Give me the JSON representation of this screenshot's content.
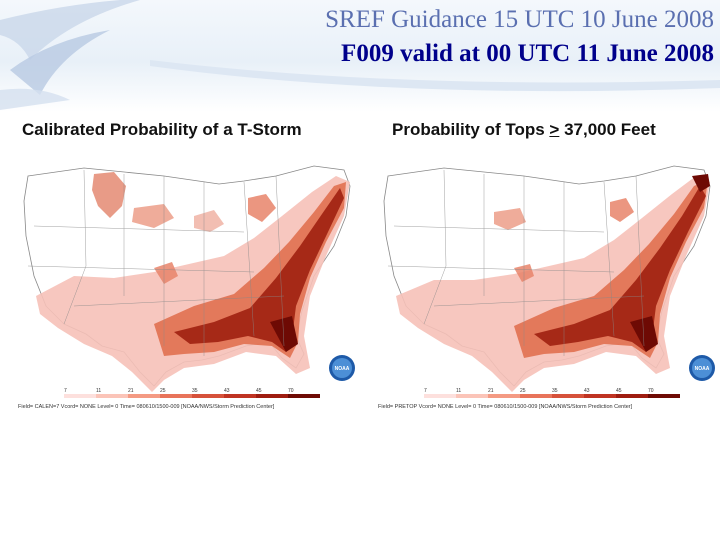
{
  "header": {
    "title_line1": "SREF Guidance 15 UTC 10 June 2008",
    "title_line2": "F009 valid at 00 UTC 11 June 2008"
  },
  "left_panel": {
    "label": "Calibrated Probability of a T-Storm",
    "footer": "Field= CALEN=7 Vcord= NONE Level= 0 Time= 080610/1500-009 [NOAA/NWS/Storm Prediction Center]"
  },
  "right_panel": {
    "label_prefix": "Probability of Tops ",
    "label_symbol": ">",
    "label_suffix": " 37,000 Feet",
    "footer": "Field= PRETOP Vcord= NONE Level= 0 Time= 080610/1500-009 [NOAA/NWS/Storm Prediction Center]"
  },
  "legend": {
    "ticks": [
      "7",
      "11",
      "21",
      "25",
      "35",
      "43",
      "45",
      "70"
    ],
    "colors": [
      "#fde0dd",
      "#fbc4b8",
      "#f49a83",
      "#e8735a",
      "#d6513a",
      "#bf3322",
      "#9e1c10",
      "#6e0a04"
    ]
  },
  "logo": {
    "text": "NOAA"
  },
  "colors": {
    "title_blue": "#00008b",
    "prob_light": "#f6b8b0",
    "prob_mid": "#dd5a3c",
    "prob_dark": "#8a1206"
  }
}
